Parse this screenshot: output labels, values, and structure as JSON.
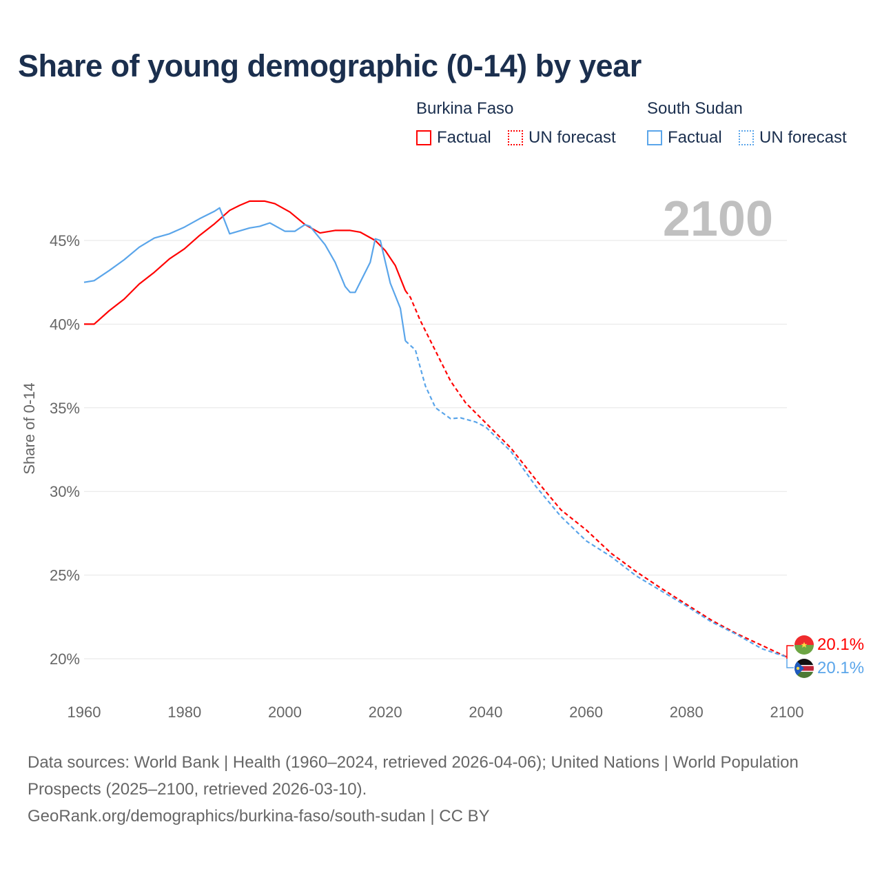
{
  "title": "Share of young demographic (0-14) by year",
  "legend": {
    "groups": [
      {
        "name": "Burkina Faso",
        "color": "#ff0000",
        "factual": "Factual",
        "forecast": "UN forecast"
      },
      {
        "name": "South Sudan",
        "color": "#5aa5ea",
        "factual": "Factual",
        "forecast": "UN forecast"
      }
    ]
  },
  "year_label": "2100",
  "end_labels": {
    "burkina_faso": "20.1%",
    "south_sudan": "20.1%"
  },
  "source": {
    "line1": "Data sources: World Bank | Health (1960–2024, retrieved 2026-04-06); United Nations | World Population Prospects (2025–2100, retrieved 2026-03-10).",
    "line2": "GeoRank.org/demographics/burkina-faso/south-sudan | CC BY"
  },
  "chart_data": {
    "type": "line",
    "title": "Share of young demographic (0-14) by year",
    "xlabel": "",
    "ylabel": "Share of 0-14",
    "xlim": [
      1960,
      2100
    ],
    "ylim": [
      18,
      49
    ],
    "xticks": [
      1960,
      1980,
      2000,
      2020,
      2040,
      2060,
      2080,
      2100
    ],
    "xtick_labels": [
      "1960",
      "1980",
      "2000",
      "2020",
      "2040",
      "2060",
      "2080",
      "2100"
    ],
    "yticks": [
      20,
      25,
      30,
      35,
      40,
      45
    ],
    "ytick_labels": [
      "20%",
      "25%",
      "30%",
      "35%",
      "40%",
      "45%"
    ],
    "grid": true,
    "legend_position": "top-right",
    "forecast_start": 2024,
    "series": [
      {
        "name": "Burkina Faso",
        "color": "#ff0000",
        "x": [
          1960,
          1962,
          1965,
          1968,
          1971,
          1974,
          1977,
          1980,
          1983,
          1986,
          1989,
          1991,
          1993,
          1996,
          1998,
          2001,
          2004,
          2007,
          2010,
          2013,
          2015,
          2018,
          2020,
          2022,
          2024,
          2025,
          2027,
          2030,
          2033,
          2036,
          2040,
          2045,
          2050,
          2055,
          2060,
          2065,
          2070,
          2075,
          2080,
          2085,
          2090,
          2095,
          2100
        ],
        "y": [
          40.0,
          40.0,
          40.8,
          41.5,
          42.4,
          43.1,
          43.9,
          44.5,
          45.3,
          46.0,
          46.8,
          47.1,
          47.35,
          47.35,
          47.2,
          46.7,
          45.95,
          45.45,
          45.6,
          45.6,
          45.5,
          45.0,
          44.4,
          43.5,
          42.0,
          41.6,
          40.2,
          38.4,
          36.6,
          35.3,
          34.1,
          32.6,
          30.7,
          28.9,
          27.7,
          26.3,
          25.2,
          24.2,
          23.25,
          22.3,
          21.5,
          20.8,
          20.1
        ]
      },
      {
        "name": "South Sudan",
        "color": "#5aa5ea",
        "x": [
          1960,
          1962,
          1965,
          1968,
          1971,
          1974,
          1977,
          1980,
          1983,
          1986,
          1987,
          1989,
          1993,
          1995,
          1997,
          2000,
          2002,
          2004,
          2005,
          2008,
          2010,
          2012,
          2013,
          2014,
          2017,
          2018,
          2019,
          2021,
          2023,
          2024,
          2026,
          2028,
          2030,
          2033,
          2035,
          2038,
          2040,
          2045,
          2050,
          2055,
          2060,
          2065,
          2070,
          2075,
          2080,
          2085,
          2090,
          2095,
          2100
        ],
        "y": [
          42.5,
          42.6,
          43.2,
          43.85,
          44.6,
          45.15,
          45.4,
          45.8,
          46.3,
          46.75,
          46.95,
          45.4,
          45.75,
          45.85,
          46.05,
          45.55,
          45.55,
          45.95,
          45.85,
          44.75,
          43.7,
          42.25,
          41.9,
          41.9,
          43.7,
          45.1,
          45.0,
          42.45,
          40.95,
          39.0,
          38.45,
          36.3,
          35.0,
          34.35,
          34.4,
          34.15,
          33.85,
          32.4,
          30.3,
          28.5,
          27.05,
          26.1,
          24.95,
          24.05,
          23.15,
          22.2,
          21.45,
          20.6,
          20.1
        ]
      }
    ]
  }
}
